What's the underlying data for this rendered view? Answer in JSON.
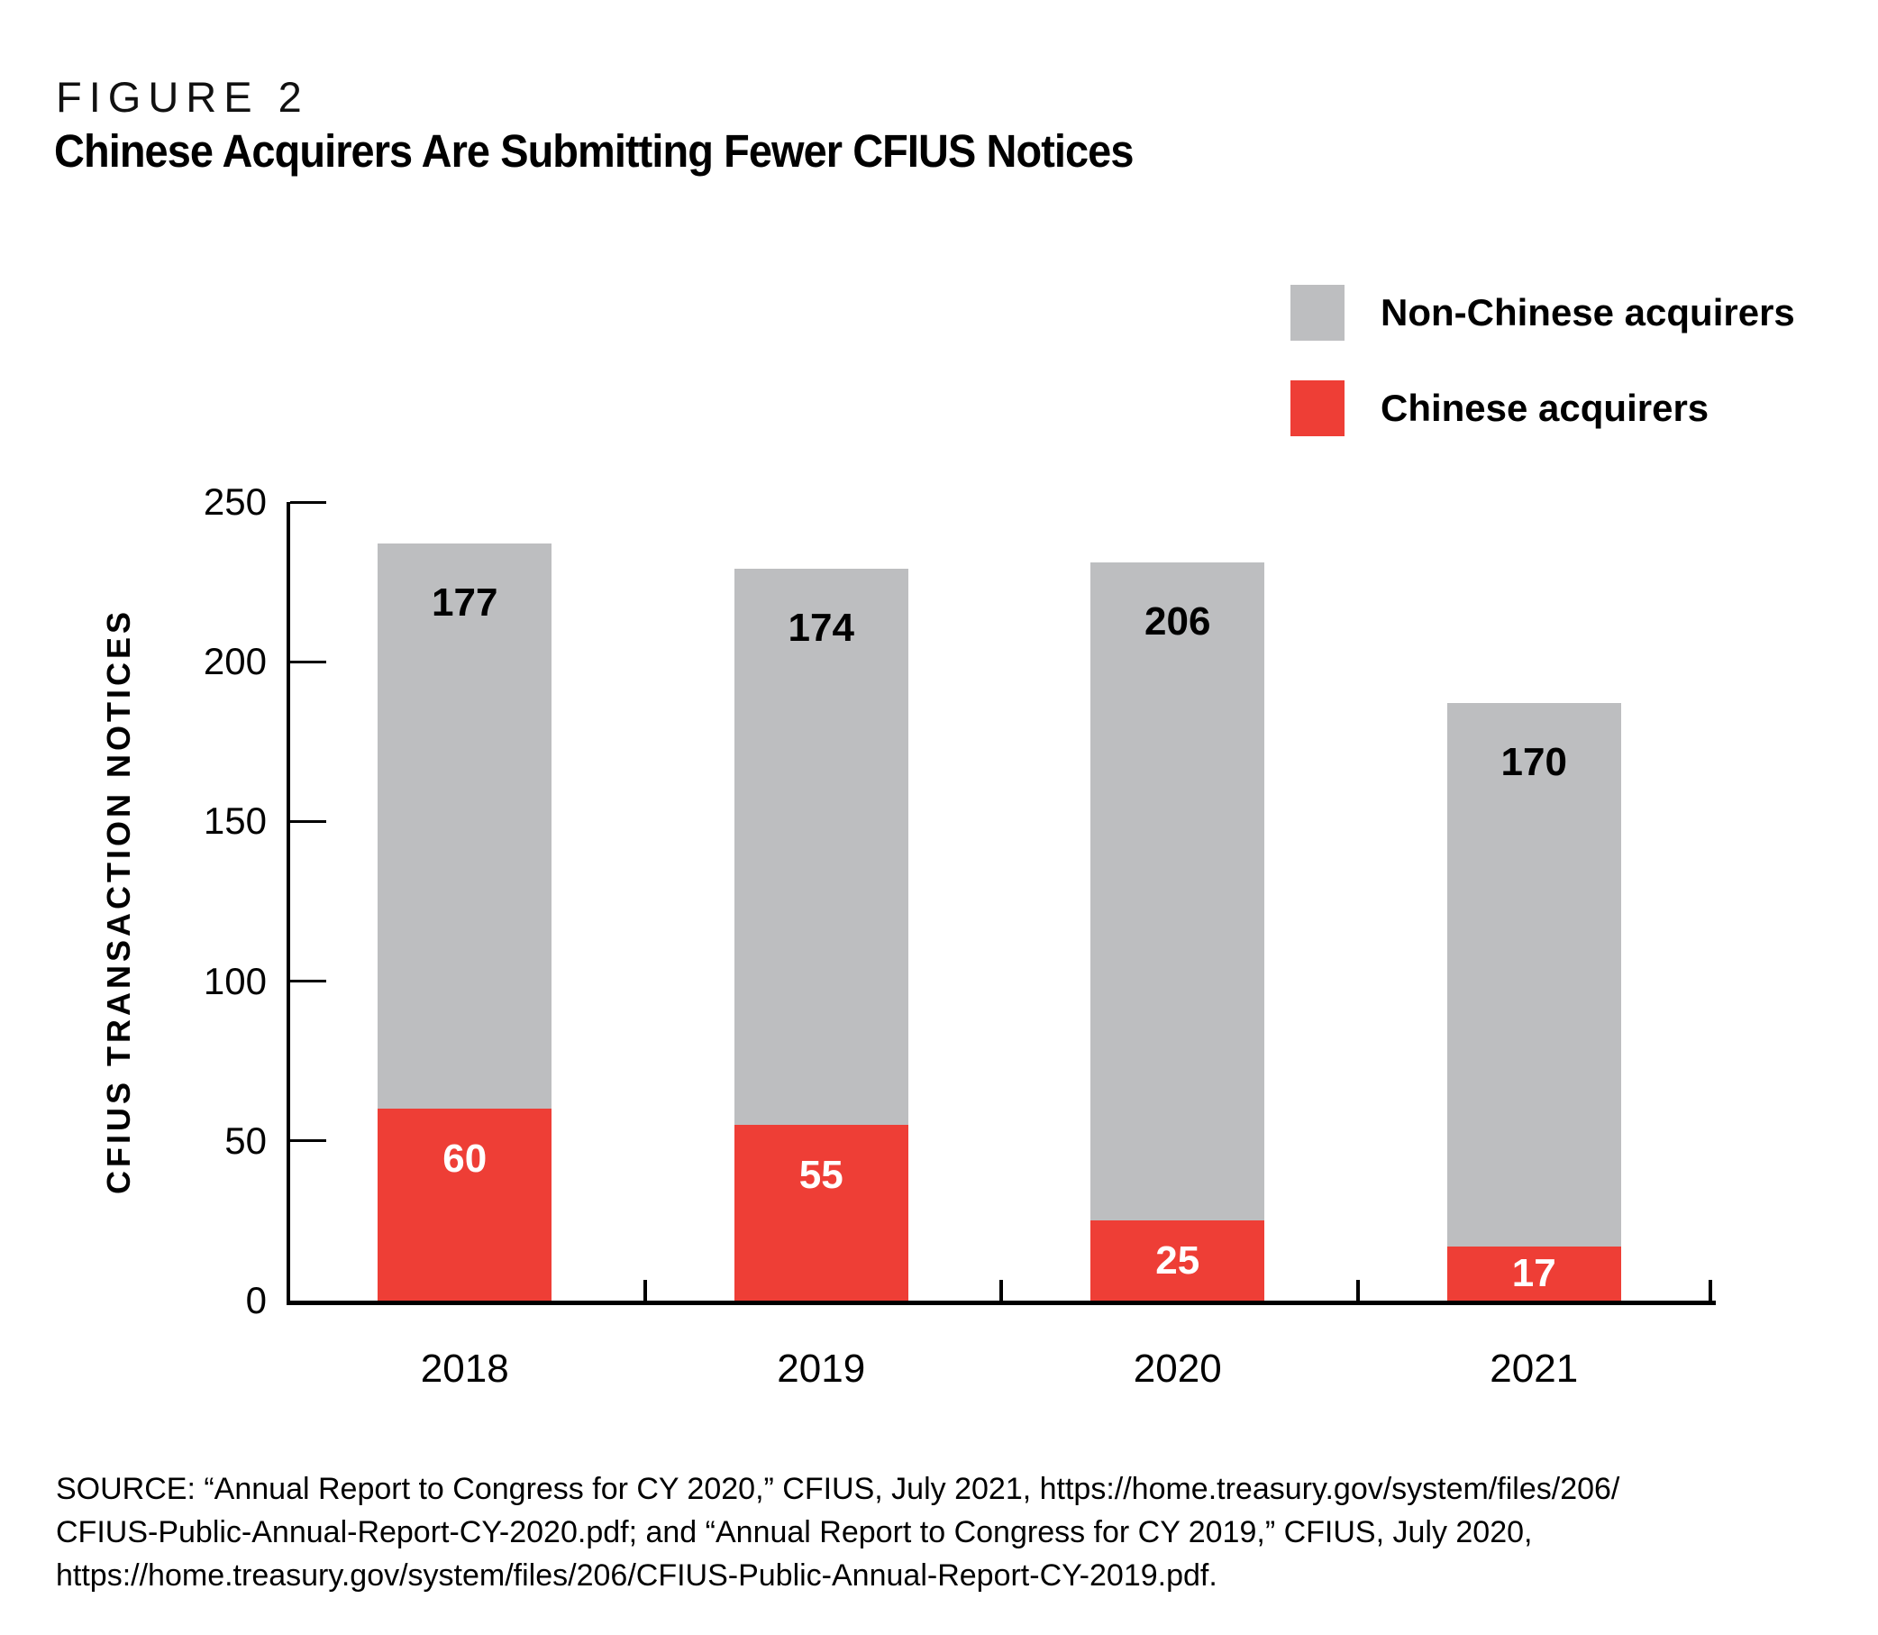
{
  "figure_label": "FIGURE 2",
  "title": "Chinese Acquirers Are Submitting Fewer CFIUS Notices",
  "legend": [
    {
      "label": "Non-Chinese acquirers",
      "color": "#bdbec0"
    },
    {
      "label": "Chinese acquirers",
      "color": "#ee3e36"
    }
  ],
  "chart_data": {
    "type": "bar",
    "stacked": true,
    "title": "Chinese Acquirers Are Submitting Fewer CFIUS Notices",
    "categories": [
      "2018",
      "2019",
      "2020",
      "2021"
    ],
    "series": [
      {
        "name": "Chinese acquirers",
        "color": "#ee3e36",
        "label_color": "#ffffff",
        "values": [
          60,
          55,
          25,
          17
        ]
      },
      {
        "name": "Non-Chinese acquirers",
        "color": "#bdbec0",
        "label_color": "#000000",
        "values": [
          177,
          174,
          206,
          170
        ]
      }
    ],
    "totals": [
      237,
      229,
      231,
      187
    ],
    "xlabel": "",
    "ylabel": "CFIUS TRANSACTION NOTICES",
    "ylim": [
      0,
      250
    ],
    "yticks": [
      0,
      50,
      100,
      150,
      200,
      250
    ],
    "grid": false,
    "legend_position": "top-right",
    "bar_labels_shown": true
  },
  "source": {
    "lines": [
      "SOURCE: “Annual Report to Congress for CY 2020,” CFIUS, July 2021, https://home.treasury.gov/system/files/206/",
      "CFIUS-Public-Annual-Report-CY-2020.pdf; and “Annual Report to Congress for CY 2019,” CFIUS, July 2020,",
      "https://home.treasury.gov/system/files/206/CFIUS-Public-Annual-Report-CY-2019.pdf."
    ]
  }
}
